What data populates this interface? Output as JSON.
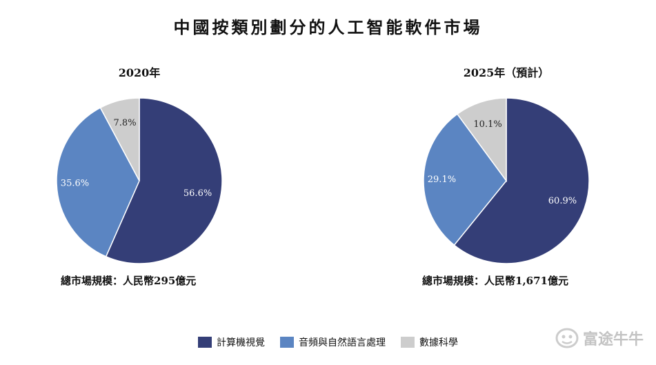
{
  "title": "中國按類別劃分的人工智能軟件市場",
  "colors": {
    "computer_vision": "#343e77",
    "speech_nlp": "#5b85c2",
    "data_science": "#cdcdcd"
  },
  "chart_data": [
    {
      "type": "pie",
      "title": "2020年",
      "labels": [
        "計算機視覺",
        "音頻與自然語言處理",
        "數據科學"
      ],
      "values": [
        56.6,
        35.6,
        7.8
      ],
      "value_labels": [
        "56.6%",
        "35.6%",
        "7.8%"
      ],
      "total_label": "總市場規模：人民幣295億元"
    },
    {
      "type": "pie",
      "title": "2025年（預計）",
      "labels": [
        "計算機視覺",
        "音頻與自然語言處理",
        "數據科學"
      ],
      "values": [
        60.9,
        29.1,
        10.1
      ],
      "value_labels": [
        "60.9%",
        "29.1%",
        "10.1%"
      ],
      "total_label": "總市場規模：人民幣1,671億元"
    }
  ],
  "legend": [
    {
      "label": "計算機視覺",
      "color": "#343e77"
    },
    {
      "label": "音頻與自然語言處理",
      "color": "#5b85c2"
    },
    {
      "label": "數據科學",
      "color": "#cdcdcd"
    }
  ],
  "watermark": {
    "text": "富途牛牛",
    "icon": "futu-logo-icon"
  }
}
